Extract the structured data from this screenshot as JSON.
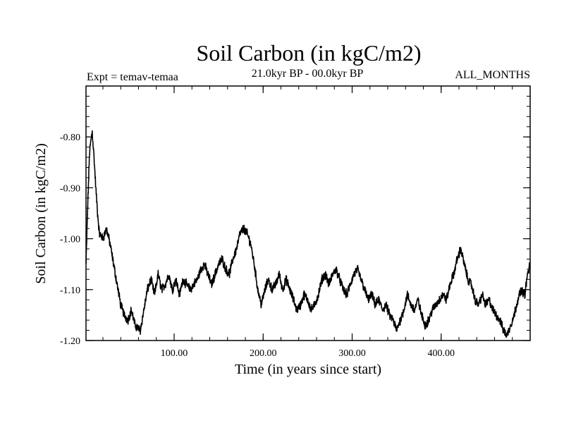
{
  "chart_data": {
    "type": "line",
    "title": "Soil Carbon (in kgC/m2)",
    "subtitle_left": "Expt = temav-temaa",
    "subtitle_center": "21.0kyr BP - 00.0kyr BP",
    "subtitle_right": "ALL_MONTHS",
    "xlabel": "Time (in years since start)",
    "ylabel": "Soil Carbon (in kgC/m2)",
    "xlim": [
      1,
      500
    ],
    "ylim": [
      -1.2,
      -0.7
    ],
    "x_ticks": [
      {
        "value": 100,
        "label": "100.00"
      },
      {
        "value": 200,
        "label": "200.00"
      },
      {
        "value": 300,
        "label": "300.00"
      },
      {
        "value": 400,
        "label": "400.00"
      }
    ],
    "y_ticks": [
      {
        "value": -0.8,
        "label": "-0.80"
      },
      {
        "value": -0.9,
        "label": "-0.90"
      },
      {
        "value": -1.0,
        "label": "-1.00"
      },
      {
        "value": -1.1,
        "label": "-1.10"
      },
      {
        "value": -1.2,
        "label": "-1.20"
      }
    ],
    "x_minor_step": 20,
    "y_minor_step": 0.02,
    "grid": false,
    "series": [
      {
        "name": "temav-temaa",
        "color": "#000000",
        "noise_amplitude": 0.007,
        "keypoints": [
          [
            1,
            -1.05
          ],
          [
            3,
            -0.93
          ],
          [
            5,
            -0.83
          ],
          [
            7,
            -0.8
          ],
          [
            8,
            -0.79
          ],
          [
            10,
            -0.84
          ],
          [
            12,
            -0.9
          ],
          [
            14,
            -0.95
          ],
          [
            16,
            -0.99
          ],
          [
            20,
            -1.0
          ],
          [
            24,
            -0.98
          ],
          [
            28,
            -1.01
          ],
          [
            32,
            -1.05
          ],
          [
            36,
            -1.09
          ],
          [
            40,
            -1.13
          ],
          [
            44,
            -1.15
          ],
          [
            48,
            -1.16
          ],
          [
            52,
            -1.14
          ],
          [
            56,
            -1.17
          ],
          [
            62,
            -1.18
          ],
          [
            66,
            -1.14
          ],
          [
            70,
            -1.1
          ],
          [
            74,
            -1.08
          ],
          [
            78,
            -1.11
          ],
          [
            82,
            -1.07
          ],
          [
            86,
            -1.1
          ],
          [
            90,
            -1.09
          ],
          [
            94,
            -1.07
          ],
          [
            98,
            -1.1
          ],
          [
            102,
            -1.08
          ],
          [
            106,
            -1.11
          ],
          [
            110,
            -1.08
          ],
          [
            114,
            -1.09
          ],
          [
            118,
            -1.1
          ],
          [
            122,
            -1.09
          ],
          [
            126,
            -1.08
          ],
          [
            130,
            -1.06
          ],
          [
            134,
            -1.05
          ],
          [
            138,
            -1.07
          ],
          [
            142,
            -1.09
          ],
          [
            146,
            -1.07
          ],
          [
            150,
            -1.05
          ],
          [
            154,
            -1.04
          ],
          [
            158,
            -1.06
          ],
          [
            162,
            -1.07
          ],
          [
            166,
            -1.04
          ],
          [
            170,
            -1.02
          ],
          [
            174,
            -0.99
          ],
          [
            178,
            -0.98
          ],
          [
            182,
            -0.99
          ],
          [
            186,
            -1.01
          ],
          [
            190,
            -1.05
          ],
          [
            194,
            -1.1
          ],
          [
            198,
            -1.13
          ],
          [
            202,
            -1.1
          ],
          [
            206,
            -1.08
          ],
          [
            210,
            -1.1
          ],
          [
            214,
            -1.09
          ],
          [
            218,
            -1.07
          ],
          [
            222,
            -1.1
          ],
          [
            226,
            -1.08
          ],
          [
            230,
            -1.1
          ],
          [
            234,
            -1.12
          ],
          [
            238,
            -1.14
          ],
          [
            242,
            -1.13
          ],
          [
            246,
            -1.11
          ],
          [
            250,
            -1.12
          ],
          [
            254,
            -1.14
          ],
          [
            258,
            -1.13
          ],
          [
            262,
            -1.11
          ],
          [
            266,
            -1.08
          ],
          [
            270,
            -1.07
          ],
          [
            274,
            -1.09
          ],
          [
            278,
            -1.07
          ],
          [
            282,
            -1.06
          ],
          [
            286,
            -1.08
          ],
          [
            290,
            -1.1
          ],
          [
            294,
            -1.11
          ],
          [
            298,
            -1.09
          ],
          [
            302,
            -1.07
          ],
          [
            306,
            -1.06
          ],
          [
            310,
            -1.08
          ],
          [
            314,
            -1.1
          ],
          [
            318,
            -1.12
          ],
          [
            322,
            -1.11
          ],
          [
            326,
            -1.13
          ],
          [
            330,
            -1.12
          ],
          [
            334,
            -1.14
          ],
          [
            338,
            -1.13
          ],
          [
            342,
            -1.15
          ],
          [
            346,
            -1.16
          ],
          [
            350,
            -1.18
          ],
          [
            354,
            -1.16
          ],
          [
            358,
            -1.14
          ],
          [
            362,
            -1.11
          ],
          [
            366,
            -1.13
          ],
          [
            370,
            -1.14
          ],
          [
            374,
            -1.12
          ],
          [
            378,
            -1.15
          ],
          [
            382,
            -1.17
          ],
          [
            386,
            -1.16
          ],
          [
            390,
            -1.14
          ],
          [
            394,
            -1.13
          ],
          [
            398,
            -1.12
          ],
          [
            402,
            -1.11
          ],
          [
            406,
            -1.12
          ],
          [
            410,
            -1.09
          ],
          [
            414,
            -1.07
          ],
          [
            418,
            -1.04
          ],
          [
            422,
            -1.02
          ],
          [
            426,
            -1.05
          ],
          [
            430,
            -1.08
          ],
          [
            434,
            -1.09
          ],
          [
            438,
            -1.12
          ],
          [
            442,
            -1.13
          ],
          [
            446,
            -1.11
          ],
          [
            450,
            -1.13
          ],
          [
            454,
            -1.12
          ],
          [
            458,
            -1.14
          ],
          [
            462,
            -1.15
          ],
          [
            466,
            -1.16
          ],
          [
            470,
            -1.18
          ],
          [
            474,
            -1.19
          ],
          [
            478,
            -1.17
          ],
          [
            482,
            -1.15
          ],
          [
            486,
            -1.12
          ],
          [
            490,
            -1.1
          ],
          [
            494,
            -1.11
          ],
          [
            497,
            -1.07
          ],
          [
            500,
            -1.05
          ]
        ]
      }
    ]
  }
}
